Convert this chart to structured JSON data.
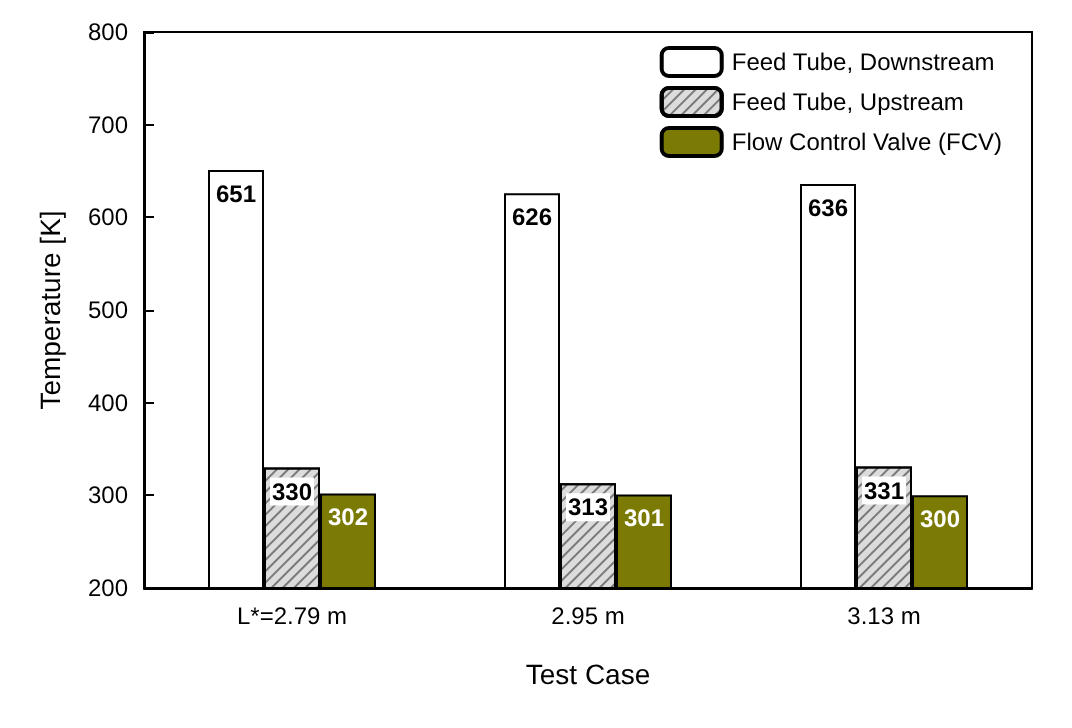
{
  "chart_data": {
    "type": "bar",
    "xlabel": "Test Case",
    "ylabel": "Temperature [K]",
    "categories": [
      "L*=2.79 m",
      "2.95 m",
      "3.13 m"
    ],
    "series": [
      {
        "name": "Feed Tube, Downstream",
        "color": "#ffffff",
        "values": [
          651,
          626,
          636
        ]
      },
      {
        "name": "Feed Tube, Upstream",
        "color": "#dcdcdc",
        "values": [
          330,
          313,
          331
        ]
      },
      {
        "name": "Flow Control Valve (FCV)",
        "color": "#7a7a05",
        "values": [
          302,
          301,
          300
        ]
      }
    ],
    "ylim": [
      200,
      800
    ],
    "yticks": [
      200,
      300,
      400,
      500,
      600,
      700,
      800
    ],
    "grid": false,
    "legend": "top right",
    "data_labels": true
  }
}
